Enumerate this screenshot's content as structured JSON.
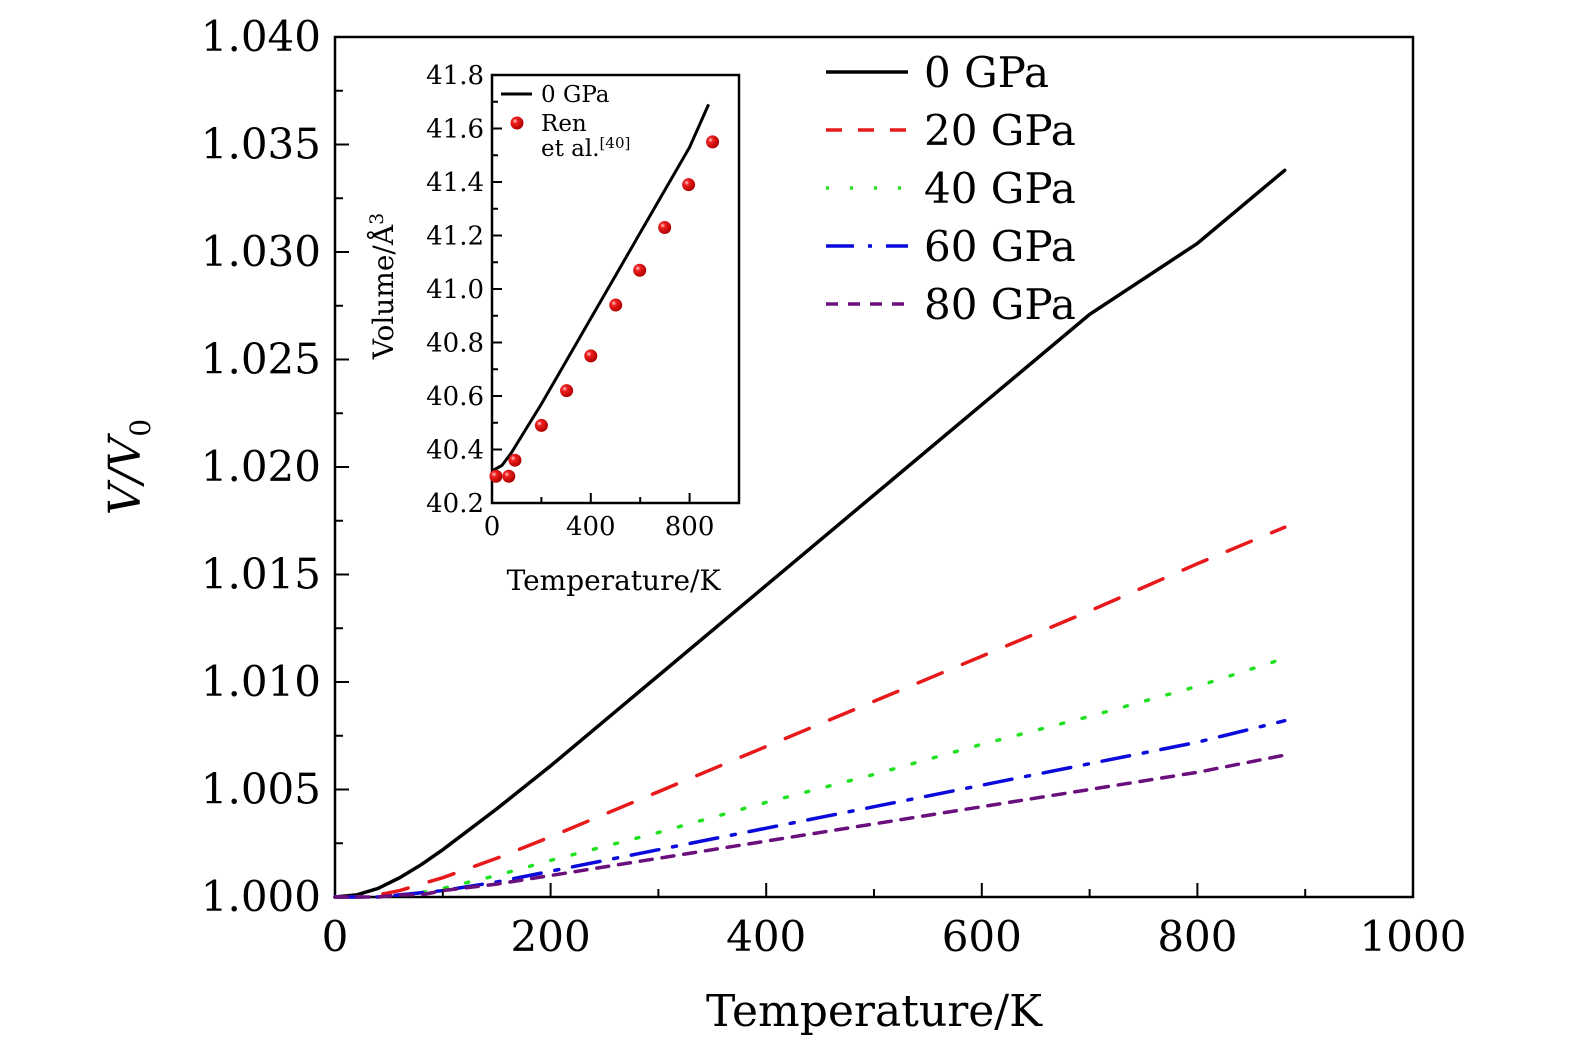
{
  "chart_data": [
    {
      "id": "main",
      "type": "line",
      "title": "",
      "xlabel": "Temperature/K",
      "ylabel_main": "V/V",
      "ylabel_sub": "0",
      "xlim": [
        0,
        1000
      ],
      "ylim": [
        1.0,
        1.04
      ],
      "xticks": [
        0,
        200,
        400,
        600,
        800,
        1000
      ],
      "xtick_labels": [
        "0",
        "200",
        "400",
        "600",
        "800",
        "1000"
      ],
      "xminor": [
        100,
        300,
        500,
        700,
        900
      ],
      "yticks": [
        1.0,
        1.005,
        1.01,
        1.015,
        1.02,
        1.025,
        1.03,
        1.035,
        1.04
      ],
      "ytick_labels": [
        "1.000",
        "1.005",
        "1.010",
        "1.015",
        "1.020",
        "1.025",
        "1.030",
        "1.035",
        "1.040"
      ],
      "yminor": [
        1.0025,
        1.0075,
        1.0125,
        1.0175,
        1.0225,
        1.0275,
        1.0325,
        1.0375
      ],
      "grid": false,
      "legend_position": "top-right",
      "series": [
        {
          "name": "0 GPa",
          "color": "#000000",
          "style": "solid",
          "x": [
            0,
            20,
            40,
            60,
            80,
            100,
            150,
            200,
            300,
            400,
            500,
            600,
            700,
            800,
            881
          ],
          "y": [
            1.0,
            1.0001,
            1.0004,
            1.0009,
            1.0015,
            1.0022,
            1.0041,
            1.0061,
            1.0103,
            1.0145,
            1.0187,
            1.0229,
            1.0271,
            1.0304,
            1.0338
          ]
        },
        {
          "name": "20 GPa",
          "color": "#e8191b",
          "style": "dashed",
          "x": [
            0,
            20,
            40,
            60,
            80,
            100,
            150,
            200,
            300,
            400,
            500,
            600,
            700,
            800,
            881
          ],
          "y": [
            1.0,
            1.0,
            1.0001,
            1.0003,
            1.0006,
            1.0009,
            1.0018,
            1.0028,
            1.0049,
            1.007,
            1.0091,
            1.0112,
            1.0133,
            1.0155,
            1.0172
          ]
        },
        {
          "name": "40 GPa",
          "color": "#22e022",
          "style": "dotted",
          "x": [
            0,
            20,
            40,
            60,
            80,
            100,
            150,
            200,
            300,
            400,
            500,
            600,
            700,
            800,
            881
          ],
          "y": [
            1.0,
            1.0,
            1.0,
            1.0001,
            1.0002,
            1.0004,
            1.001,
            1.0017,
            1.003,
            1.0044,
            1.0057,
            1.0071,
            1.0084,
            1.0098,
            1.0111
          ]
        },
        {
          "name": "60 GPa",
          "color": "#0a0adc",
          "style": "dashdot",
          "x": [
            0,
            20,
            40,
            60,
            80,
            100,
            150,
            200,
            300,
            400,
            500,
            600,
            700,
            800,
            881
          ],
          "y": [
            1.0,
            1.0,
            1.0,
            1.0001,
            1.0002,
            1.0003,
            1.0007,
            1.0012,
            1.0022,
            1.0032,
            1.0042,
            1.0052,
            1.0062,
            1.0072,
            1.0082
          ]
        },
        {
          "name": "80 GPa",
          "color": "#6a0f7e",
          "style": "shortdash",
          "x": [
            0,
            20,
            40,
            60,
            80,
            100,
            150,
            200,
            300,
            400,
            500,
            600,
            700,
            800,
            881
          ],
          "y": [
            1.0,
            1.0,
            1.0,
            1.0001,
            1.0001,
            1.0003,
            1.0006,
            1.001,
            1.0018,
            1.0026,
            1.0034,
            1.0042,
            1.005,
            1.0058,
            1.0066
          ]
        }
      ]
    },
    {
      "id": "inset",
      "type": "line",
      "title": "",
      "xlabel": "Temperature/K",
      "ylabel": "Volume/Å",
      "ylabel_sup": "3",
      "xlim": [
        0,
        1000
      ],
      "ylim": [
        40.2,
        41.8
      ],
      "xticks": [
        0,
        400,
        800
      ],
      "xtick_labels": [
        "0",
        "400",
        "800"
      ],
      "xminor": [
        200,
        600,
        1000
      ],
      "yticks": [
        40.2,
        40.4,
        40.6,
        40.8,
        41.0,
        41.2,
        41.4,
        41.6,
        41.8
      ],
      "ytick_labels": [
        "40.2",
        "40.4",
        "40.6",
        "40.8",
        "41.0",
        "41.2",
        "41.4",
        "41.6",
        "41.8"
      ],
      "yminor": [
        40.3,
        40.5,
        40.7,
        40.9,
        41.1,
        41.3,
        41.5,
        41.7
      ],
      "grid": false,
      "legend_position": "top-left",
      "series": [
        {
          "name": "0 GPa",
          "color": "#000000",
          "style": "solid",
          "kind": "line",
          "x": [
            0,
            40,
            80,
            120,
            200,
            300,
            400,
            500,
            600,
            700,
            800,
            877
          ],
          "y": [
            40.32,
            40.34,
            40.39,
            40.45,
            40.57,
            40.73,
            40.89,
            41.05,
            41.21,
            41.37,
            41.53,
            41.69
          ]
        },
        {
          "name": "Ren et al.",
          "name_sup": "[40]",
          "color": "#e8191b",
          "style": "marker",
          "kind": "scatter",
          "x": [
            16,
            68,
            93,
            200,
            302,
            400,
            501,
            598,
            699,
            796,
            893
          ],
          "y": [
            40.3,
            40.3,
            40.36,
            40.49,
            40.62,
            40.75,
            40.94,
            41.07,
            41.23,
            41.39,
            41.55
          ]
        }
      ]
    }
  ]
}
